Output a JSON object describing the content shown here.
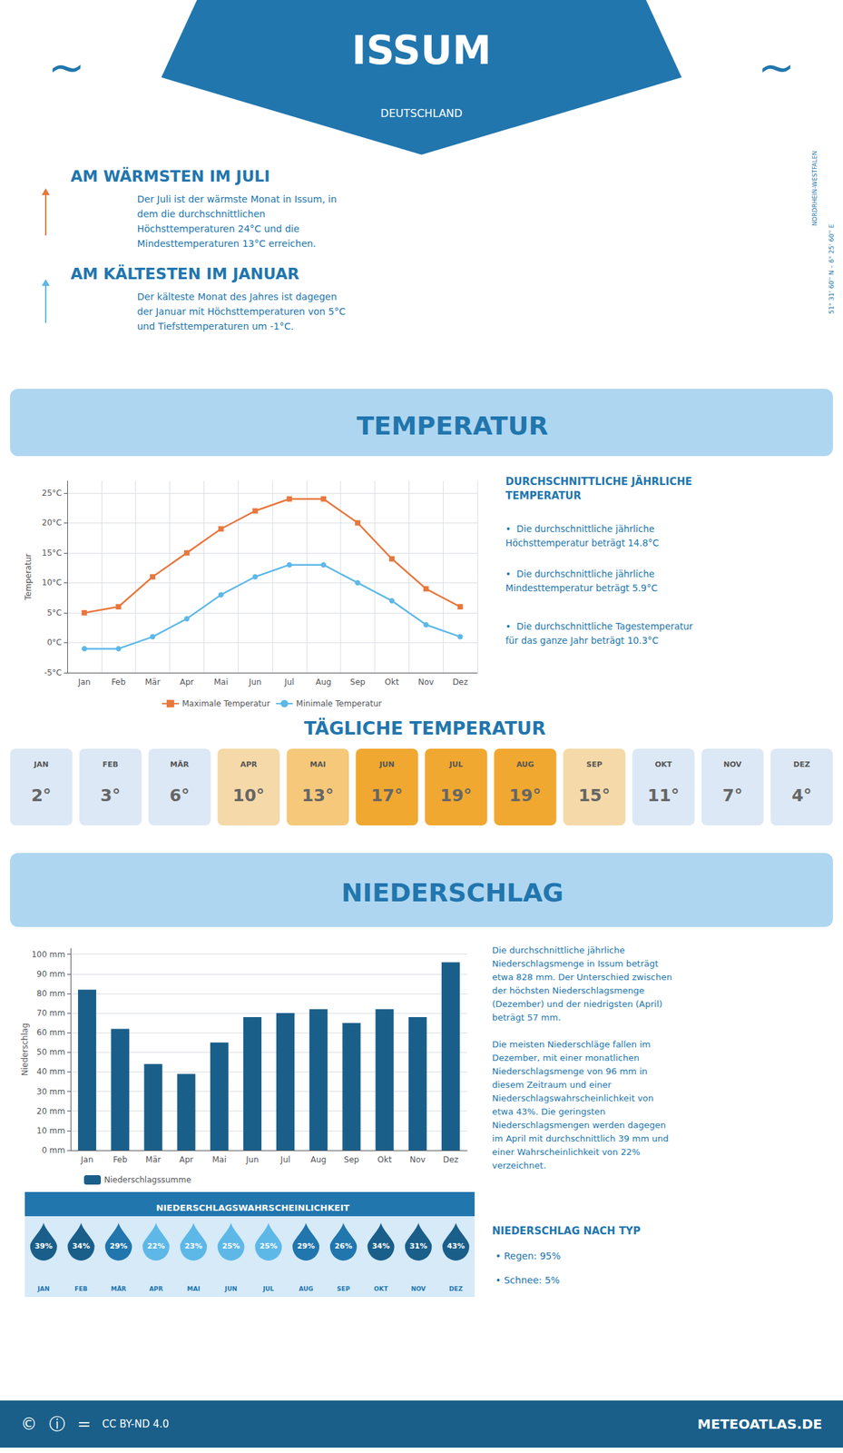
{
  "chart_data": [
    {
      "type": "line",
      "title": "TEMPERATUR",
      "ylabel": "Temperatur",
      "categories": [
        "Jan",
        "Feb",
        "Mär",
        "Apr",
        "Mai",
        "Jun",
        "Jul",
        "Aug",
        "Sep",
        "Okt",
        "Nov",
        "Dez"
      ],
      "series": [
        {
          "name": "Maximale Temperatur",
          "color": "#e8773d",
          "marker": "square",
          "values": [
            5,
            6,
            11,
            15,
            19,
            22,
            24,
            24,
            20,
            14,
            9,
            6
          ]
        },
        {
          "name": "Minimale Temperatur",
          "color": "#5db8e8",
          "marker": "circle",
          "values": [
            -1,
            -1,
            1,
            4,
            8,
            11,
            13,
            13,
            10,
            7,
            3,
            1
          ]
        }
      ],
      "ylim": [
        -5,
        27
      ],
      "yticks": [
        {
          "value": -5,
          "label": "-5°C"
        },
        {
          "value": 0,
          "label": "0°C"
        },
        {
          "value": 5,
          "label": "5°C"
        },
        {
          "value": 10,
          "label": "10°C"
        },
        {
          "value": 15,
          "label": "15°C"
        },
        {
          "value": 20,
          "label": "20°C"
        },
        {
          "value": 25,
          "label": "25°C"
        }
      ],
      "grid": true,
      "legend": "lower center",
      "annotations": [
        "ISSUM",
        "DEUTSCHLAND",
        "~",
        "~",
        "AM WÄRMSTEN IM JULI",
        "Der Juli ist der wärmste Monat in Issum, in\ndem die durchschnittlichen\nHöchsttemperaturen 24°C und die\nMindesttemperaturen 13°C erreichen.",
        "AM KÄLTESTEN IM JANUAR",
        "Der kälteste Monat des Jahres ist dagegen\nder Januar mit Höchsttemperaturen von 5°C\nund Tiefsttemperaturen um -1°C.",
        "NORDRHEIN-WESTFALEN",
        "51° 31' 60'' N – 6° 25' 60'' E",
        "DURCHSCHNITTLICHE JÄHRLICHE\nTEMPERATUR",
        "•  Die durchschnittliche jährliche\nHöchsttemperatur beträgt 14.8°C",
        "•  Die durchschnittliche jährliche\nMindesttemperatur beträgt 5.9°C",
        "•  Die durchschnittliche Tagestemperatur\nfür das ganze Jahr beträgt 10.3°C"
      ]
    },
    {
      "type": "table",
      "title": "TÄGLICHE TEMPERATUR",
      "categories": [
        "JAN",
        "FEB",
        "MÄR",
        "APR",
        "MAI",
        "JUN",
        "JUL",
        "AUG",
        "SEP",
        "OKT",
        "NOV",
        "DEZ"
      ],
      "values": [
        2,
        3,
        6,
        10,
        13,
        17,
        19,
        19,
        15,
        11,
        7,
        4
      ],
      "value_labels": [
        "2°",
        "3°",
        "6°",
        "10°",
        "13°",
        "17°",
        "19°",
        "19°",
        "15°",
        "11°",
        "7°",
        "4°"
      ],
      "colors": [
        "#dce8f5",
        "#dce8f5",
        "#dce8f5",
        "#f5d9a8",
        "#f5c87a",
        "#f0a830",
        "#f0a830",
        "#f0a830",
        "#f5d9a8",
        "#dce8f5",
        "#dce8f5",
        "#dce8f5"
      ],
      "data_labels": true
    },
    {
      "type": "bar",
      "title": "NIEDERSCHLAG",
      "ylabel": "Niederschlag",
      "categories": [
        "Jan",
        "Feb",
        "Mär",
        "Apr",
        "Mai",
        "Jun",
        "Jul",
        "Aug",
        "Sep",
        "Okt",
        "Nov",
        "Dez"
      ],
      "series": [
        {
          "name": "Niederschlagssumme",
          "color": "#1a5f8a",
          "values": [
            82,
            62,
            44,
            39,
            55,
            68,
            70,
            72,
            65,
            72,
            68,
            96
          ]
        }
      ],
      "ylim": [
        0,
        103
      ],
      "yticks": [
        {
          "value": 0,
          "label": "0 mm"
        },
        {
          "value": 10,
          "label": "10 mm"
        },
        {
          "value": 20,
          "label": "20 mm"
        },
        {
          "value": 30,
          "label": "30 mm"
        },
        {
          "value": 40,
          "label": "40 mm"
        },
        {
          "value": 50,
          "label": "50 mm"
        },
        {
          "value": 60,
          "label": "60 mm"
        },
        {
          "value": 70,
          "label": "70 mm"
        },
        {
          "value": 80,
          "label": "80 mm"
        },
        {
          "value": 90,
          "label": "90 mm"
        },
        {
          "value": 100,
          "label": "100 mm"
        }
      ],
      "grid": "y",
      "legend": "lower left",
      "annotations": [
        "Die durchschnittliche jährliche\nNiederschlagsmenge in Issum beträgt\netwa 828 mm. Der Unterschied zwischen\nder höchsten Niederschlagsmenge\n(Dezember) und der niedrigsten (April)\nbeträgt 57 mm.\n\nDie meisten Niederschläge fallen im\nDezember, mit einer monatlichen\nNiederschlagsmenge von 96 mm in\ndiesem Zeitraum und einer\nNiederschlagswahrscheinlichkeit von\netwa 43%. Die geringsten\nNiederschlagsmengen werden dagegen\nim April mit durchschnittlich 39 mm und\neiner Wahrscheinlichkeit von 22%\nverzeichnet.",
        "NIEDERSCHLAG NACH TYP",
        "• Regen: 95%",
        "• Schnee: 5%"
      ]
    },
    {
      "type": "table",
      "title": "NIEDERSCHLAGSWAHRSCHEINLICHKEIT",
      "marker": "drop",
      "categories": [
        "JAN",
        "FEB",
        "MÄR",
        "APR",
        "MAI",
        "JUN",
        "JUL",
        "AUG",
        "SEP",
        "OKT",
        "NOV",
        "DEZ"
      ],
      "values": [
        39,
        34,
        29,
        22,
        23,
        25,
        25,
        29,
        26,
        34,
        31,
        43
      ],
      "value_labels": [
        "39%",
        "34%",
        "29%",
        "22%",
        "23%",
        "25%",
        "25%",
        "29%",
        "26%",
        "34%",
        "31%",
        "43%"
      ],
      "colors": [
        "#1a5f8a",
        "#1a5f8a",
        "#2176ae",
        "#5db8e8",
        "#5db8e8",
        "#5db8e8",
        "#5db8e8",
        "#2176ae",
        "#2176ae",
        "#1a5f8a",
        "#1a5f8a",
        "#1a5f8a"
      ],
      "data_labels": true,
      "annotations": [
        "©",
        "ⓘ",
        "=",
        "CC BY-ND 4.0",
        "METEOATLAS.DE"
      ]
    }
  ]
}
